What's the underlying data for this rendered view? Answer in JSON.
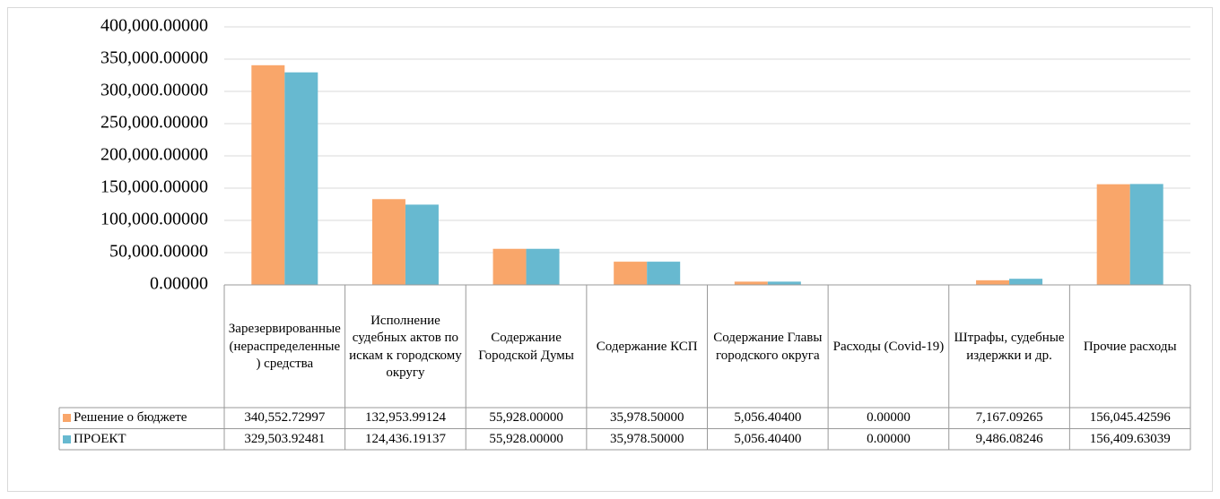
{
  "chart_data": {
    "type": "bar",
    "categories": [
      "Зарезервированные (нераспределенные) средства",
      "Исполнение судебных актов по искам к городскому округу",
      "Содержание Городской Думы",
      "Содержание КСП",
      "Содержание Главы городского округа",
      "Расходы (Covid-19)",
      "Штрафы, судебные издержки и др.",
      "Прочие расходы"
    ],
    "series": [
      {
        "name": "Решение о бюджете",
        "color": "#f9a66a",
        "values": [
          340552.72997,
          132953.99124,
          55928.0,
          35978.5,
          5056.404,
          0.0,
          7167.09265,
          156045.42596
        ],
        "value_labels": [
          "340,552.72997",
          "132,953.99124",
          "55,928.00000",
          "35,978.50000",
          "5,056.40400",
          "0.00000",
          "7,167.09265",
          "156,045.42596"
        ]
      },
      {
        "name": "ПРОЕКТ",
        "color": "#67b9d0",
        "values": [
          329503.92481,
          124436.19137,
          55928.0,
          35978.5,
          5056.404,
          0.0,
          9486.08246,
          156409.63039
        ],
        "value_labels": [
          "329,503.92481",
          "124,436.19137",
          "55,928.00000",
          "35,978.50000",
          "5,056.40400",
          "0.00000",
          "9,486.08246",
          "156,409.63039"
        ]
      }
    ],
    "ylim": [
      0,
      400000
    ],
    "yticks": [
      {
        "value": 0,
        "label": "0.00000"
      },
      {
        "value": 50000,
        "label": "50,000.00000"
      },
      {
        "value": 100000,
        "label": "100,000.00000"
      },
      {
        "value": 150000,
        "label": "150,000.00000"
      },
      {
        "value": 200000,
        "label": "200,000.00000"
      },
      {
        "value": 250000,
        "label": "250,000.00000"
      },
      {
        "value": 300000,
        "label": "300,000.00000"
      },
      {
        "value": 350000,
        "label": "350,000.00000"
      },
      {
        "value": 400000,
        "label": "400,000.00000"
      }
    ],
    "grid": true
  }
}
